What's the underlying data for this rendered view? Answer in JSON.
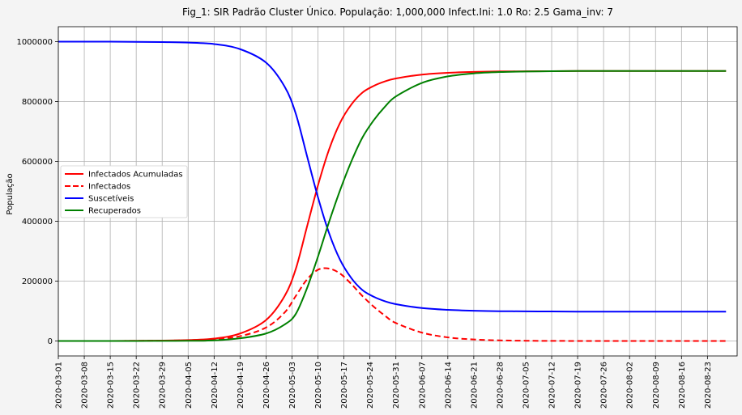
{
  "chart_data": {
    "type": "line",
    "title": "Fig_1: SIR Padrão Cluster Único. População: 1,000,000 Infect.Ini: 1.0     Ro: 2.5 Gama_inv: 7",
    "xlabel": "",
    "ylabel": "População",
    "x_type": "date",
    "xlim": [
      "2020-03-01",
      "2020-08-31"
    ],
    "ylim": [
      -50000,
      1050000
    ],
    "yticks": [
      0,
      200000,
      400000,
      600000,
      800000,
      1000000
    ],
    "ytick_labels": [
      "0",
      "200000",
      "400000",
      "600000",
      "800000",
      "1000000"
    ],
    "xtick_labels": [
      "2020-03-01",
      "2020-03-08",
      "2020-03-15",
      "2020-03-22",
      "2020-03-29",
      "2020-04-05",
      "2020-04-12",
      "2020-04-19",
      "2020-04-26",
      "2020-05-03",
      "2020-05-10",
      "2020-05-17",
      "2020-05-24",
      "2020-05-31",
      "2020-06-07",
      "2020-06-14",
      "2020-06-21",
      "2020-06-28",
      "2020-07-05",
      "2020-07-12",
      "2020-07-19",
      "2020-07-26",
      "2020-08-02",
      "2020-08-09",
      "2020-08-16",
      "2020-08-23"
    ],
    "grid": true,
    "legend_position": "center-left",
    "x": [
      "2020-03-01",
      "2020-03-08",
      "2020-03-15",
      "2020-03-22",
      "2020-03-29",
      "2020-04-05",
      "2020-04-12",
      "2020-04-19",
      "2020-04-26",
      "2020-05-01",
      "2020-05-04",
      "2020-05-07",
      "2020-05-10",
      "2020-05-13",
      "2020-05-16",
      "2020-05-19",
      "2020-05-22",
      "2020-05-25",
      "2020-05-28",
      "2020-05-31",
      "2020-06-07",
      "2020-06-14",
      "2020-06-21",
      "2020-06-28",
      "2020-07-05",
      "2020-07-12",
      "2020-07-19",
      "2020-07-26",
      "2020-08-02",
      "2020-08-09",
      "2020-08-16",
      "2020-08-23",
      "2020-08-28"
    ],
    "series": [
      {
        "name": "Infectados Acumuladas",
        "color": "#ff0000",
        "style": "solid",
        "values": [
          0,
          0,
          0,
          500,
          1500,
          3000,
          8000,
          25000,
          70000,
          150000,
          240000,
          380000,
          520000,
          640000,
          730000,
          790000,
          830000,
          852000,
          867000,
          877000,
          890000,
          896000,
          899000,
          900500,
          901000,
          901500,
          902000,
          902000,
          902000,
          902000,
          902000,
          902000,
          902000
        ]
      },
      {
        "name": "Infectados",
        "color": "#ff0000",
        "style": "dashed",
        "values": [
          0,
          0,
          0,
          400,
          1200,
          2500,
          6000,
          16000,
          45000,
          95000,
          150000,
          205000,
          238000,
          242000,
          225000,
          190000,
          150000,
          115000,
          85000,
          60000,
          28000,
          12000,
          5000,
          2000,
          800,
          300,
          100,
          0,
          0,
          0,
          0,
          0,
          0
        ]
      },
      {
        "name": "Suscetíveis",
        "color": "#0000ff",
        "style": "solid",
        "values": [
          1000000,
          1000000,
          1000000,
          999500,
          998500,
          997000,
          992000,
          975000,
          930000,
          850000,
          760000,
          620000,
          480000,
          360000,
          270000,
          210000,
          170000,
          148000,
          133000,
          123000,
          110000,
          104000,
          101000,
          99500,
          99000,
          98500,
          98000,
          98000,
          98000,
          98000,
          98000,
          98000,
          98000
        ]
      },
      {
        "name": "Recuperados",
        "color": "#008000",
        "style": "solid",
        "values": [
          0,
          0,
          0,
          100,
          300,
          500,
          2000,
          9000,
          25000,
          55000,
          90000,
          175000,
          282000,
          398000,
          505000,
          600000,
          680000,
          737000,
          782000,
          817000,
          862000,
          884000,
          894000,
          898500,
          900200,
          901200,
          901900,
          902000,
          902000,
          902000,
          902000,
          902000,
          902000
        ]
      }
    ]
  }
}
